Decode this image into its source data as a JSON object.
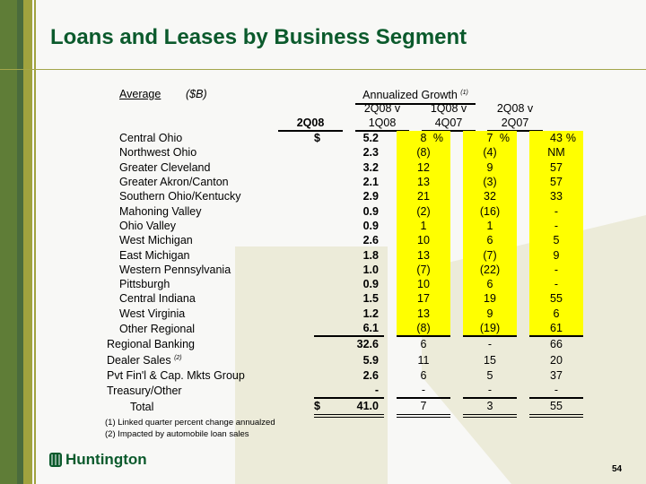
{
  "title": "Loans and Leases by Business Segment",
  "header": {
    "average": "Average",
    "unit": "($B)",
    "annualized": "Annualized Growth",
    "annualized_note": "(1)",
    "col_value": "2Q08",
    "c1a": "2Q08 v",
    "c1b": "1Q08",
    "c2a": "1Q08 v",
    "c2b": "4Q07",
    "c3a": "2Q08 v",
    "c3b": "2Q07"
  },
  "rows": [
    {
      "label": "Central Ohio",
      "dollar": "$",
      "value": "5.2",
      "c1": "8",
      "c2": "7",
      "c3": "43",
      "pct": "%",
      "indent": true,
      "hl": true
    },
    {
      "label": "Northwest Ohio",
      "value": "2.3",
      "c1": "(8)",
      "c2": "(4)",
      "c3": "NM",
      "indent": true,
      "hl": true
    },
    {
      "label": "Greater Cleveland",
      "value": "3.2",
      "c1": "12",
      "c2": "9",
      "c3": "57",
      "indent": true,
      "hl": true
    },
    {
      "label": "Greater Akron/Canton",
      "value": "2.1",
      "c1": "13",
      "c2": "(3)",
      "c3": "57",
      "indent": true,
      "hl": true
    },
    {
      "label": "Southern Ohio/Kentucky",
      "value": "2.9",
      "c1": "21",
      "c2": "32",
      "c3": "33",
      "indent": true,
      "hl": true
    },
    {
      "label": "Mahoning Valley",
      "value": "0.9",
      "c1": "(2)",
      "c2": "(16)",
      "c3": "-",
      "indent": true,
      "hl": true
    },
    {
      "label": "Ohio Valley",
      "value": "0.9",
      "c1": "1",
      "c2": "1",
      "c3": "-",
      "indent": true,
      "hl": true
    },
    {
      "label": "West Michigan",
      "value": "2.6",
      "c1": "10",
      "c2": "6",
      "c3": "5",
      "indent": true,
      "hl": true
    },
    {
      "label": "East Michigan",
      "value": "1.8",
      "c1": "13",
      "c2": "(7)",
      "c3": "9",
      "indent": true,
      "hl": true
    },
    {
      "label": "Western Pennsylvania",
      "value": "1.0",
      "c1": "(7)",
      "c2": "(22)",
      "c3": "-",
      "indent": true,
      "hl": true
    },
    {
      "label": "Pittsburgh",
      "value": "0.9",
      "c1": "10",
      "c2": "6",
      "c3": "-",
      "indent": true,
      "hl": true
    },
    {
      "label": "Central Indiana",
      "value": "1.5",
      "c1": "17",
      "c2": "19",
      "c3": "55",
      "indent": true,
      "hl": true
    },
    {
      "label": "West Virginia",
      "value": "1.2",
      "c1": "13",
      "c2": "9",
      "c3": "6",
      "indent": true,
      "hl": true
    },
    {
      "label": "Other Regional",
      "value": "6.1",
      "c1": "(8)",
      "c2": "(19)",
      "c3": "61",
      "indent": true,
      "hl": true,
      "ul": true
    },
    {
      "label": "Regional Banking",
      "value": "32.6",
      "c1": "6",
      "c2": "-",
      "c3": "66"
    },
    {
      "label": "Dealer Sales",
      "note": "(2)",
      "value": "5.9",
      "c1": "11",
      "c2": "15",
      "c3": "20"
    },
    {
      "label": "Pvt Fin'l & Cap. Mkts Group",
      "value": "2.6",
      "c1": "6",
      "c2": "5",
      "c3": "37"
    },
    {
      "label": "Treasury/Other",
      "value": "-",
      "c1": "-",
      "c2": "-",
      "c3": "-",
      "ul": true
    },
    {
      "label": "Total",
      "dollar": "$",
      "value": "41.0",
      "c1": "7",
      "c2": "3",
      "c3": "55",
      "total": true,
      "dl": true
    }
  ],
  "footnotes": [
    "(1)  Linked quarter percent change annualzed",
    "(2)  Impacted by automobile loan sales"
  ],
  "logo": "Huntington",
  "page_number": "54",
  "colors": {
    "title": "#0b5a2c",
    "highlight": "#ffff00",
    "bar": "#5f7d37"
  }
}
